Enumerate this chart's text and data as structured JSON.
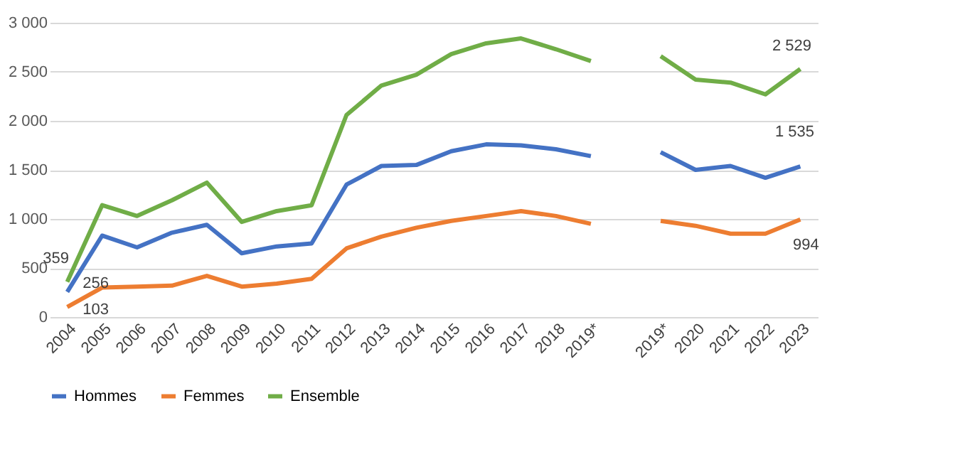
{
  "chart_data": {
    "type": "line",
    "categories": [
      "2004",
      "2005",
      "2006",
      "2007",
      "2008",
      "2009",
      "2010",
      "2011",
      "2012",
      "2013",
      "2014",
      "2015",
      "2016",
      "2017",
      "2018",
      "2019*",
      null,
      "2019*",
      "2020",
      "2021",
      "2022",
      "2023"
    ],
    "series": [
      {
        "name": "Hommes",
        "color": "#4472c4",
        "values": [
          256,
          830,
          710,
          860,
          940,
          650,
          720,
          750,
          1350,
          1540,
          1550,
          1690,
          1760,
          1750,
          1710,
          1640,
          null,
          1680,
          1500,
          1540,
          1420,
          1535
        ],
        "value_labels": [
          "256",
          null,
          null,
          null,
          null,
          null,
          null,
          null,
          null,
          null,
          null,
          null,
          null,
          null,
          null,
          null,
          null,
          null,
          null,
          null,
          null,
          "1 535"
        ]
      },
      {
        "name": "Femmes",
        "color": "#ed7d31",
        "values": [
          103,
          300,
          310,
          320,
          420,
          310,
          340,
          390,
          700,
          820,
          910,
          980,
          1030,
          1080,
          1030,
          950,
          null,
          980,
          930,
          850,
          850,
          994
        ],
        "value_labels": [
          "103",
          null,
          null,
          null,
          null,
          null,
          null,
          null,
          null,
          null,
          null,
          null,
          null,
          null,
          null,
          null,
          null,
          null,
          null,
          null,
          null,
          "994"
        ]
      },
      {
        "name": "Ensemble",
        "color": "#70ad47",
        "values": [
          359,
          1140,
          1030,
          1190,
          1370,
          970,
          1080,
          1140,
          2060,
          2360,
          2470,
          2680,
          2790,
          2840,
          2730,
          2610,
          null,
          2660,
          2420,
          2390,
          2270,
          2529
        ],
        "value_labels": [
          "359",
          null,
          null,
          null,
          null,
          null,
          null,
          null,
          null,
          null,
          null,
          null,
          null,
          null,
          null,
          null,
          null,
          null,
          null,
          null,
          null,
          "2 529"
        ]
      }
    ],
    "ylim": [
      0,
      3000
    ],
    "yticks": [
      0,
      500,
      {
        "value": 1000,
        "label": "1 000"
      },
      {
        "value": 1500,
        "label": "1 500"
      },
      {
        "value": 2000,
        "label": "2 000"
      },
      {
        "value": 2500,
        "label": "2 500"
      },
      {
        "value": 3000,
        "label": "3 000"
      }
    ],
    "grid": "y",
    "legend": "bottom",
    "line_style": "solid",
    "marker": "none"
  }
}
